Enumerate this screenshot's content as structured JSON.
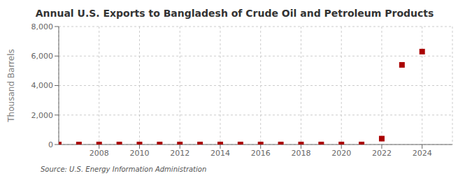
{
  "chart_data": {
    "type": "scatter",
    "title": "Annual U.S. Exports to Bangladesh of Crude Oil and Petroleum Products",
    "ylabel": "Thousand Barrels",
    "annotations": [
      "Source: U.S. Energy Information Administration"
    ],
    "x": [
      2006,
      2007,
      2008,
      2009,
      2010,
      2011,
      2012,
      2013,
      2014,
      2015,
      2016,
      2017,
      2018,
      2019,
      2020,
      2021,
      2022,
      2023,
      2024
    ],
    "values": [
      0,
      0,
      2,
      2,
      2,
      2,
      2,
      2,
      2,
      2,
      2,
      2,
      2,
      2,
      2,
      2,
      400,
      5400,
      6300
    ],
    "color": "#aa0000",
    "marker": "square",
    "xlim": [
      2006.0,
      2025.5
    ],
    "xticks": [
      2008,
      2010,
      2012,
      2014,
      2016,
      2018,
      2020,
      2022,
      2024
    ],
    "ylim": [
      0,
      8000
    ],
    "yticks": [
      0,
      {
        "value": 2000,
        "label": "2,000"
      },
      {
        "value": 4000,
        "label": "4,000"
      },
      {
        "value": 6000,
        "label": "6,000"
      },
      {
        "value": 8000,
        "label": "8,000"
      }
    ],
    "grid": true
  }
}
